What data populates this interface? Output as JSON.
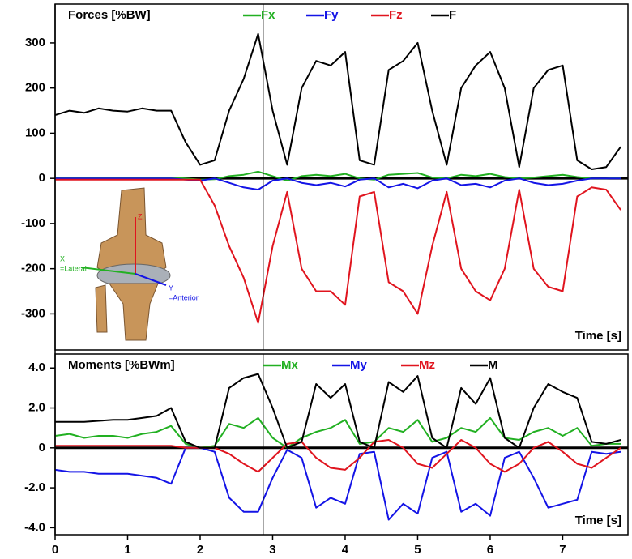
{
  "chart_data": [
    {
      "type": "line",
      "title": "Forces [%BW]",
      "x_label": "Time [s]",
      "x": [
        0,
        0.2,
        0.4,
        0.6,
        0.8,
        1.0,
        1.2,
        1.4,
        1.6,
        1.8,
        2.0,
        2.2,
        2.4,
        2.6,
        2.8,
        3.0,
        3.2,
        3.4,
        3.6,
        3.8,
        4.0,
        4.2,
        4.4,
        4.6,
        4.8,
        5.0,
        5.2,
        5.4,
        5.6,
        5.8,
        6.0,
        6.2,
        6.4,
        6.6,
        6.8,
        7.0,
        7.2,
        7.4,
        7.6,
        7.8
      ],
      "xlim": [
        0,
        7.9
      ],
      "ylim": [
        -380,
        386
      ],
      "yticks": [
        300,
        200,
        100,
        0,
        -100,
        -200,
        -300
      ],
      "cursor": 2.87,
      "image_labels": [
        "Z",
        "X",
        "=Lateral",
        "Y",
        "=Anterior"
      ],
      "series": [
        {
          "name": "Fx",
          "color": "#22b022",
          "values": [
            2,
            2,
            2,
            2,
            2,
            2,
            2,
            2,
            2,
            0,
            -3,
            -2,
            5,
            8,
            15,
            5,
            -5,
            5,
            8,
            5,
            10,
            0,
            -3,
            8,
            10,
            12,
            2,
            0,
            8,
            5,
            10,
            3,
            0,
            2,
            5,
            8,
            3,
            0,
            0,
            2
          ]
        },
        {
          "name": "Fy",
          "color": "#1414e6",
          "values": [
            0,
            0,
            0,
            0,
            0,
            0,
            0,
            0,
            0,
            -3,
            -5,
            0,
            -10,
            -20,
            -25,
            -5,
            0,
            -10,
            -15,
            -10,
            -18,
            -3,
            0,
            -20,
            -12,
            -22,
            -5,
            0,
            -15,
            -12,
            -20,
            -5,
            0,
            -10,
            -15,
            -12,
            -5,
            0,
            0,
            0
          ]
        },
        {
          "name": "Fz",
          "color": "#e0141e",
          "values": [
            -3,
            -3,
            -3,
            -3,
            -3,
            -3,
            -3,
            -3,
            -3,
            -3,
            -3,
            -60,
            -150,
            -220,
            -320,
            -150,
            -30,
            -200,
            -250,
            -250,
            -280,
            -40,
            -30,
            -230,
            -250,
            -300,
            -150,
            -30,
            -200,
            -250,
            -270,
            -200,
            -25,
            -200,
            -240,
            -250,
            -40,
            -20,
            -25,
            -70
          ]
        },
        {
          "name": "F",
          "color": "#000000",
          "values": [
            140,
            150,
            145,
            155,
            150,
            148,
            155,
            150,
            150,
            80,
            30,
            40,
            150,
            220,
            320,
            150,
            30,
            200,
            260,
            250,
            280,
            40,
            30,
            240,
            260,
            300,
            150,
            30,
            200,
            250,
            280,
            200,
            25,
            200,
            240,
            250,
            40,
            20,
            25,
            70
          ]
        }
      ]
    },
    {
      "type": "line",
      "title": "Moments [%BWm]",
      "x_label": "Time [s]",
      "x": [
        0,
        0.2,
        0.4,
        0.6,
        0.8,
        1.0,
        1.2,
        1.4,
        1.6,
        1.8,
        2.0,
        2.2,
        2.4,
        2.6,
        2.8,
        3.0,
        3.2,
        3.4,
        3.6,
        3.8,
        4.0,
        4.2,
        4.4,
        4.6,
        4.8,
        5.0,
        5.2,
        5.4,
        5.6,
        5.8,
        6.0,
        6.2,
        6.4,
        6.6,
        6.8,
        7.0,
        7.2,
        7.4,
        7.6,
        7.8
      ],
      "xlim": [
        0,
        7.9
      ],
      "ylim": [
        -4.35,
        4.7
      ],
      "xticks": [
        0,
        1,
        2,
        3,
        4,
        5,
        6,
        7
      ],
      "yticks": [
        {
          "value": 4,
          "label": "4.0"
        },
        {
          "value": 2,
          "label": "2.0"
        },
        0,
        {
          "value": -2,
          "label": "-2.0"
        },
        {
          "value": -4,
          "label": "-4.0"
        }
      ],
      "cursor": 2.87,
      "series": [
        {
          "name": "Mx",
          "color": "#22b022",
          "values": [
            0.6,
            0.7,
            0.5,
            0.6,
            0.6,
            0.5,
            0.7,
            0.8,
            1.1,
            0.2,
            0,
            0.1,
            1.2,
            1.0,
            1.5,
            0.5,
            0,
            0.5,
            0.8,
            1.0,
            1.4,
            0.2,
            0.3,
            1.0,
            0.8,
            1.4,
            0.3,
            0.5,
            1.0,
            0.8,
            1.5,
            0.5,
            0.4,
            0.8,
            1.0,
            0.6,
            1.0,
            0.1,
            0.2,
            0.2
          ]
        },
        {
          "name": "My",
          "color": "#1414e6",
          "values": [
            -1.1,
            -1.2,
            -1.2,
            -1.3,
            -1.3,
            -1.3,
            -1.4,
            -1.5,
            -1.8,
            0,
            0,
            -0.2,
            -2.5,
            -3.2,
            -3.2,
            -1.5,
            -0.1,
            -0.5,
            -3.0,
            -2.5,
            -2.8,
            -0.3,
            -0.2,
            -3.6,
            -2.8,
            -3.3,
            -0.5,
            -0.2,
            -3.2,
            -2.8,
            -3.4,
            -0.5,
            -0.2,
            -1.5,
            -3.0,
            -2.8,
            -2.6,
            -0.2,
            -0.3,
            -0.2
          ]
        },
        {
          "name": "Mz",
          "color": "#e0141e",
          "values": [
            0.1,
            0.1,
            0.1,
            0.1,
            0.1,
            0.1,
            0.1,
            0.1,
            0.1,
            0,
            0,
            0,
            -0.3,
            -0.8,
            -1.2,
            -0.5,
            0.2,
            0.3,
            -0.5,
            -1.0,
            -1.1,
            -0.5,
            0.3,
            0.4,
            0,
            -0.8,
            -1.0,
            -0.3,
            0.4,
            0,
            -0.8,
            -1.2,
            -0.8,
            0,
            0.3,
            -0.2,
            -0.8,
            -1.0,
            -0.5,
            0
          ]
        },
        {
          "name": "M",
          "color": "#000000",
          "values": [
            1.3,
            1.3,
            1.3,
            1.35,
            1.4,
            1.4,
            1.5,
            1.6,
            2.0,
            0.3,
            0,
            0,
            3.0,
            3.5,
            3.7,
            2.0,
            0,
            0.3,
            3.2,
            2.5,
            3.2,
            0.3,
            0,
            3.3,
            2.8,
            3.6,
            0.5,
            0,
            3.0,
            2.2,
            3.5,
            0.5,
            0,
            2.0,
            3.2,
            2.8,
            2.5,
            0.3,
            0.2,
            0.4
          ]
        }
      ]
    }
  ]
}
